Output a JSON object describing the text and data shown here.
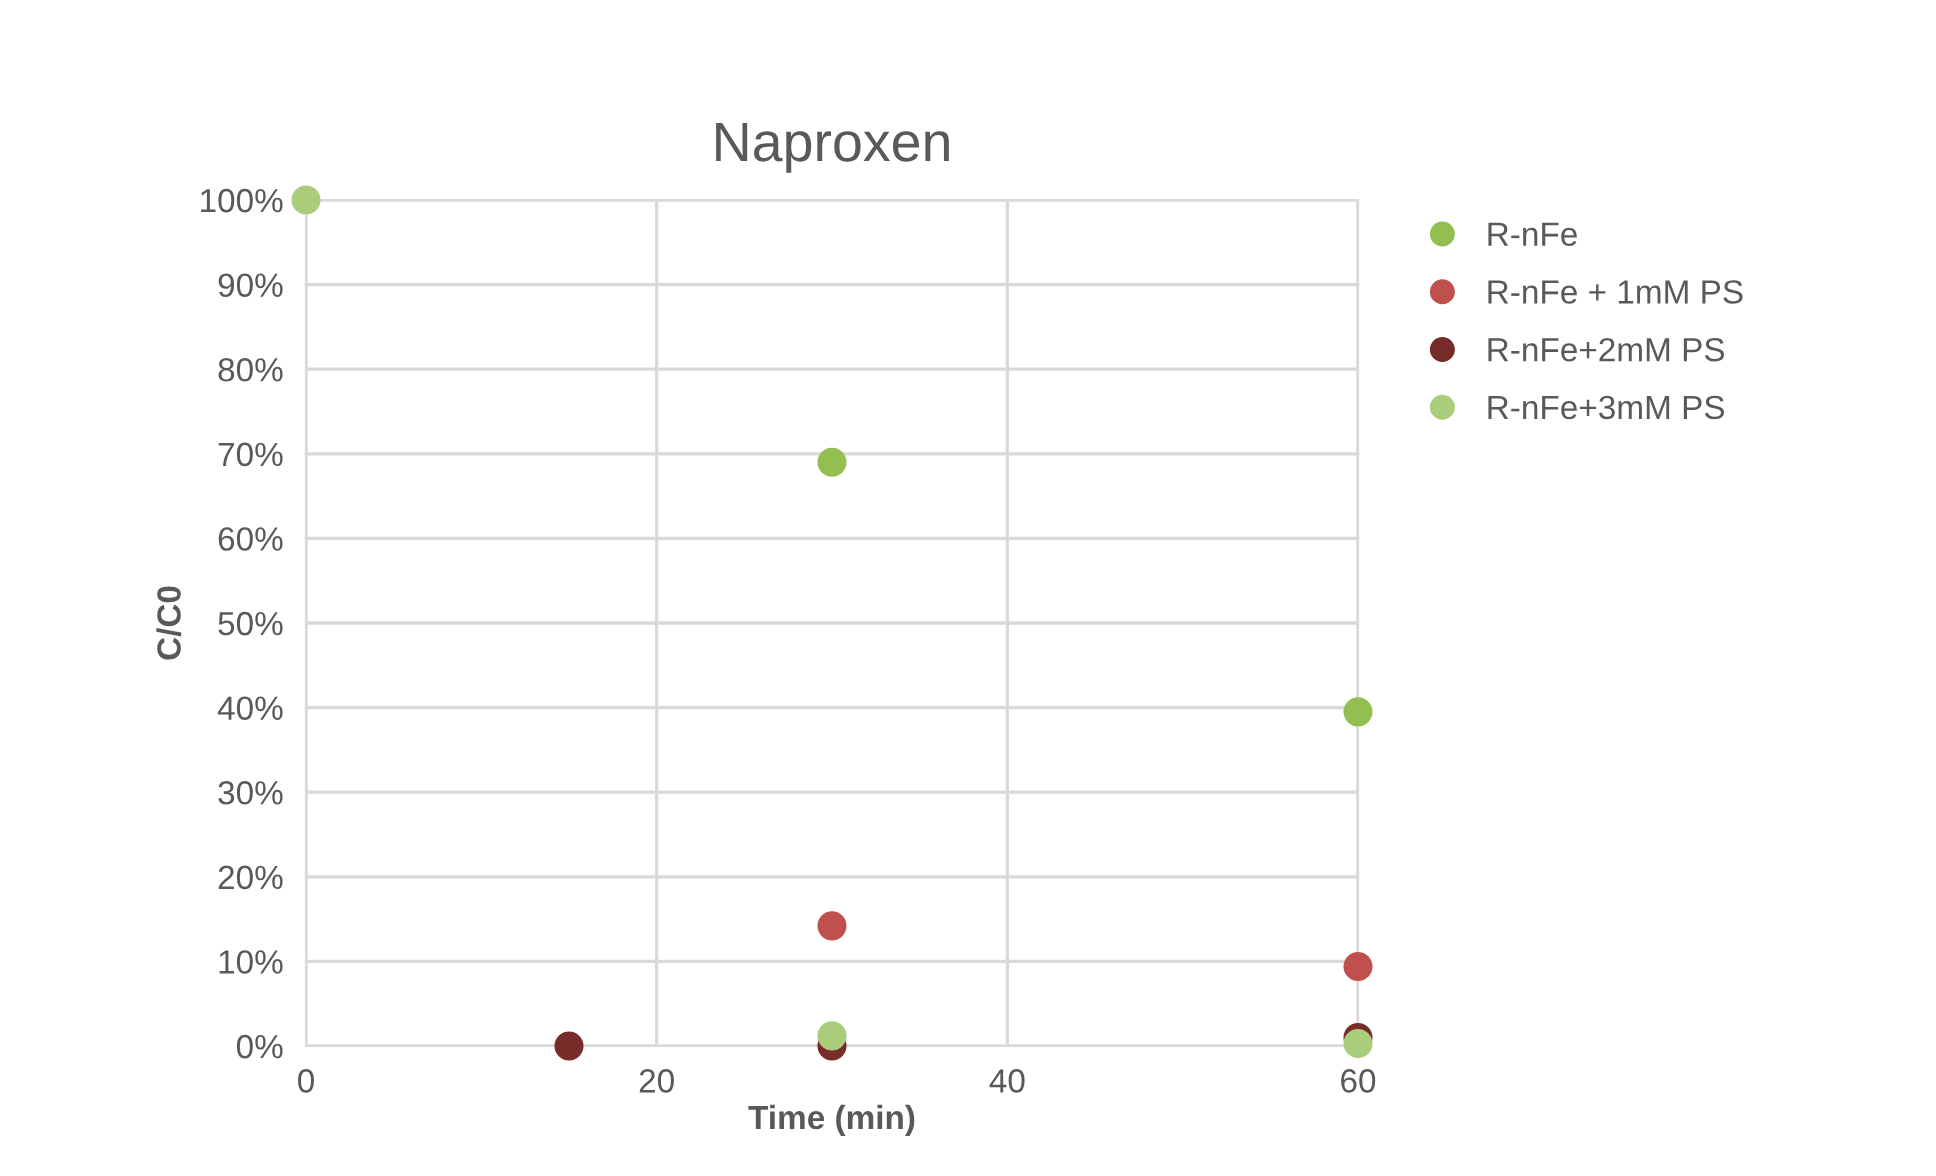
{
  "chart_data": {
    "type": "scatter",
    "title": "Naproxen",
    "xlabel": "Time (min)",
    "ylabel": "C/C0",
    "xlim": [
      0,
      60
    ],
    "xticks": [
      0,
      20,
      40,
      60
    ],
    "ylim": [
      0,
      100
    ],
    "yticks": [
      {
        "value": 0,
        "label": "0%"
      },
      {
        "value": 10,
        "label": "10%"
      },
      {
        "value": 20,
        "label": "20%"
      },
      {
        "value": 30,
        "label": "30%"
      },
      {
        "value": 40,
        "label": "40%"
      },
      {
        "value": 50,
        "label": "50%"
      },
      {
        "value": 60,
        "label": "60%"
      },
      {
        "value": 70,
        "label": "70%"
      },
      {
        "value": 80,
        "label": "80%"
      },
      {
        "value": 90,
        "label": "90%"
      },
      {
        "value": 100,
        "label": "100%"
      }
    ],
    "grid": true,
    "legend": "right",
    "marker": "circle",
    "series": [
      {
        "name": "R-nFe",
        "color": "#92bf4f",
        "x": [
          30,
          60
        ],
        "values": [
          69,
          39.5
        ]
      },
      {
        "name": "R-nFe + 1mM PS",
        "color": "#c0504d",
        "x": [
          30,
          60
        ],
        "values": [
          14.2,
          9.4
        ]
      },
      {
        "name": "R-nFe+2mM PS",
        "color": "#772c2a",
        "x": [
          15,
          30,
          60
        ],
        "values": [
          0,
          0,
          1
        ]
      },
      {
        "name": "R-nFe+3mM PS",
        "color": "#a9cd7a",
        "x": [
          0,
          30,
          60
        ],
        "values": [
          100,
          1.2,
          0.3
        ]
      }
    ]
  }
}
